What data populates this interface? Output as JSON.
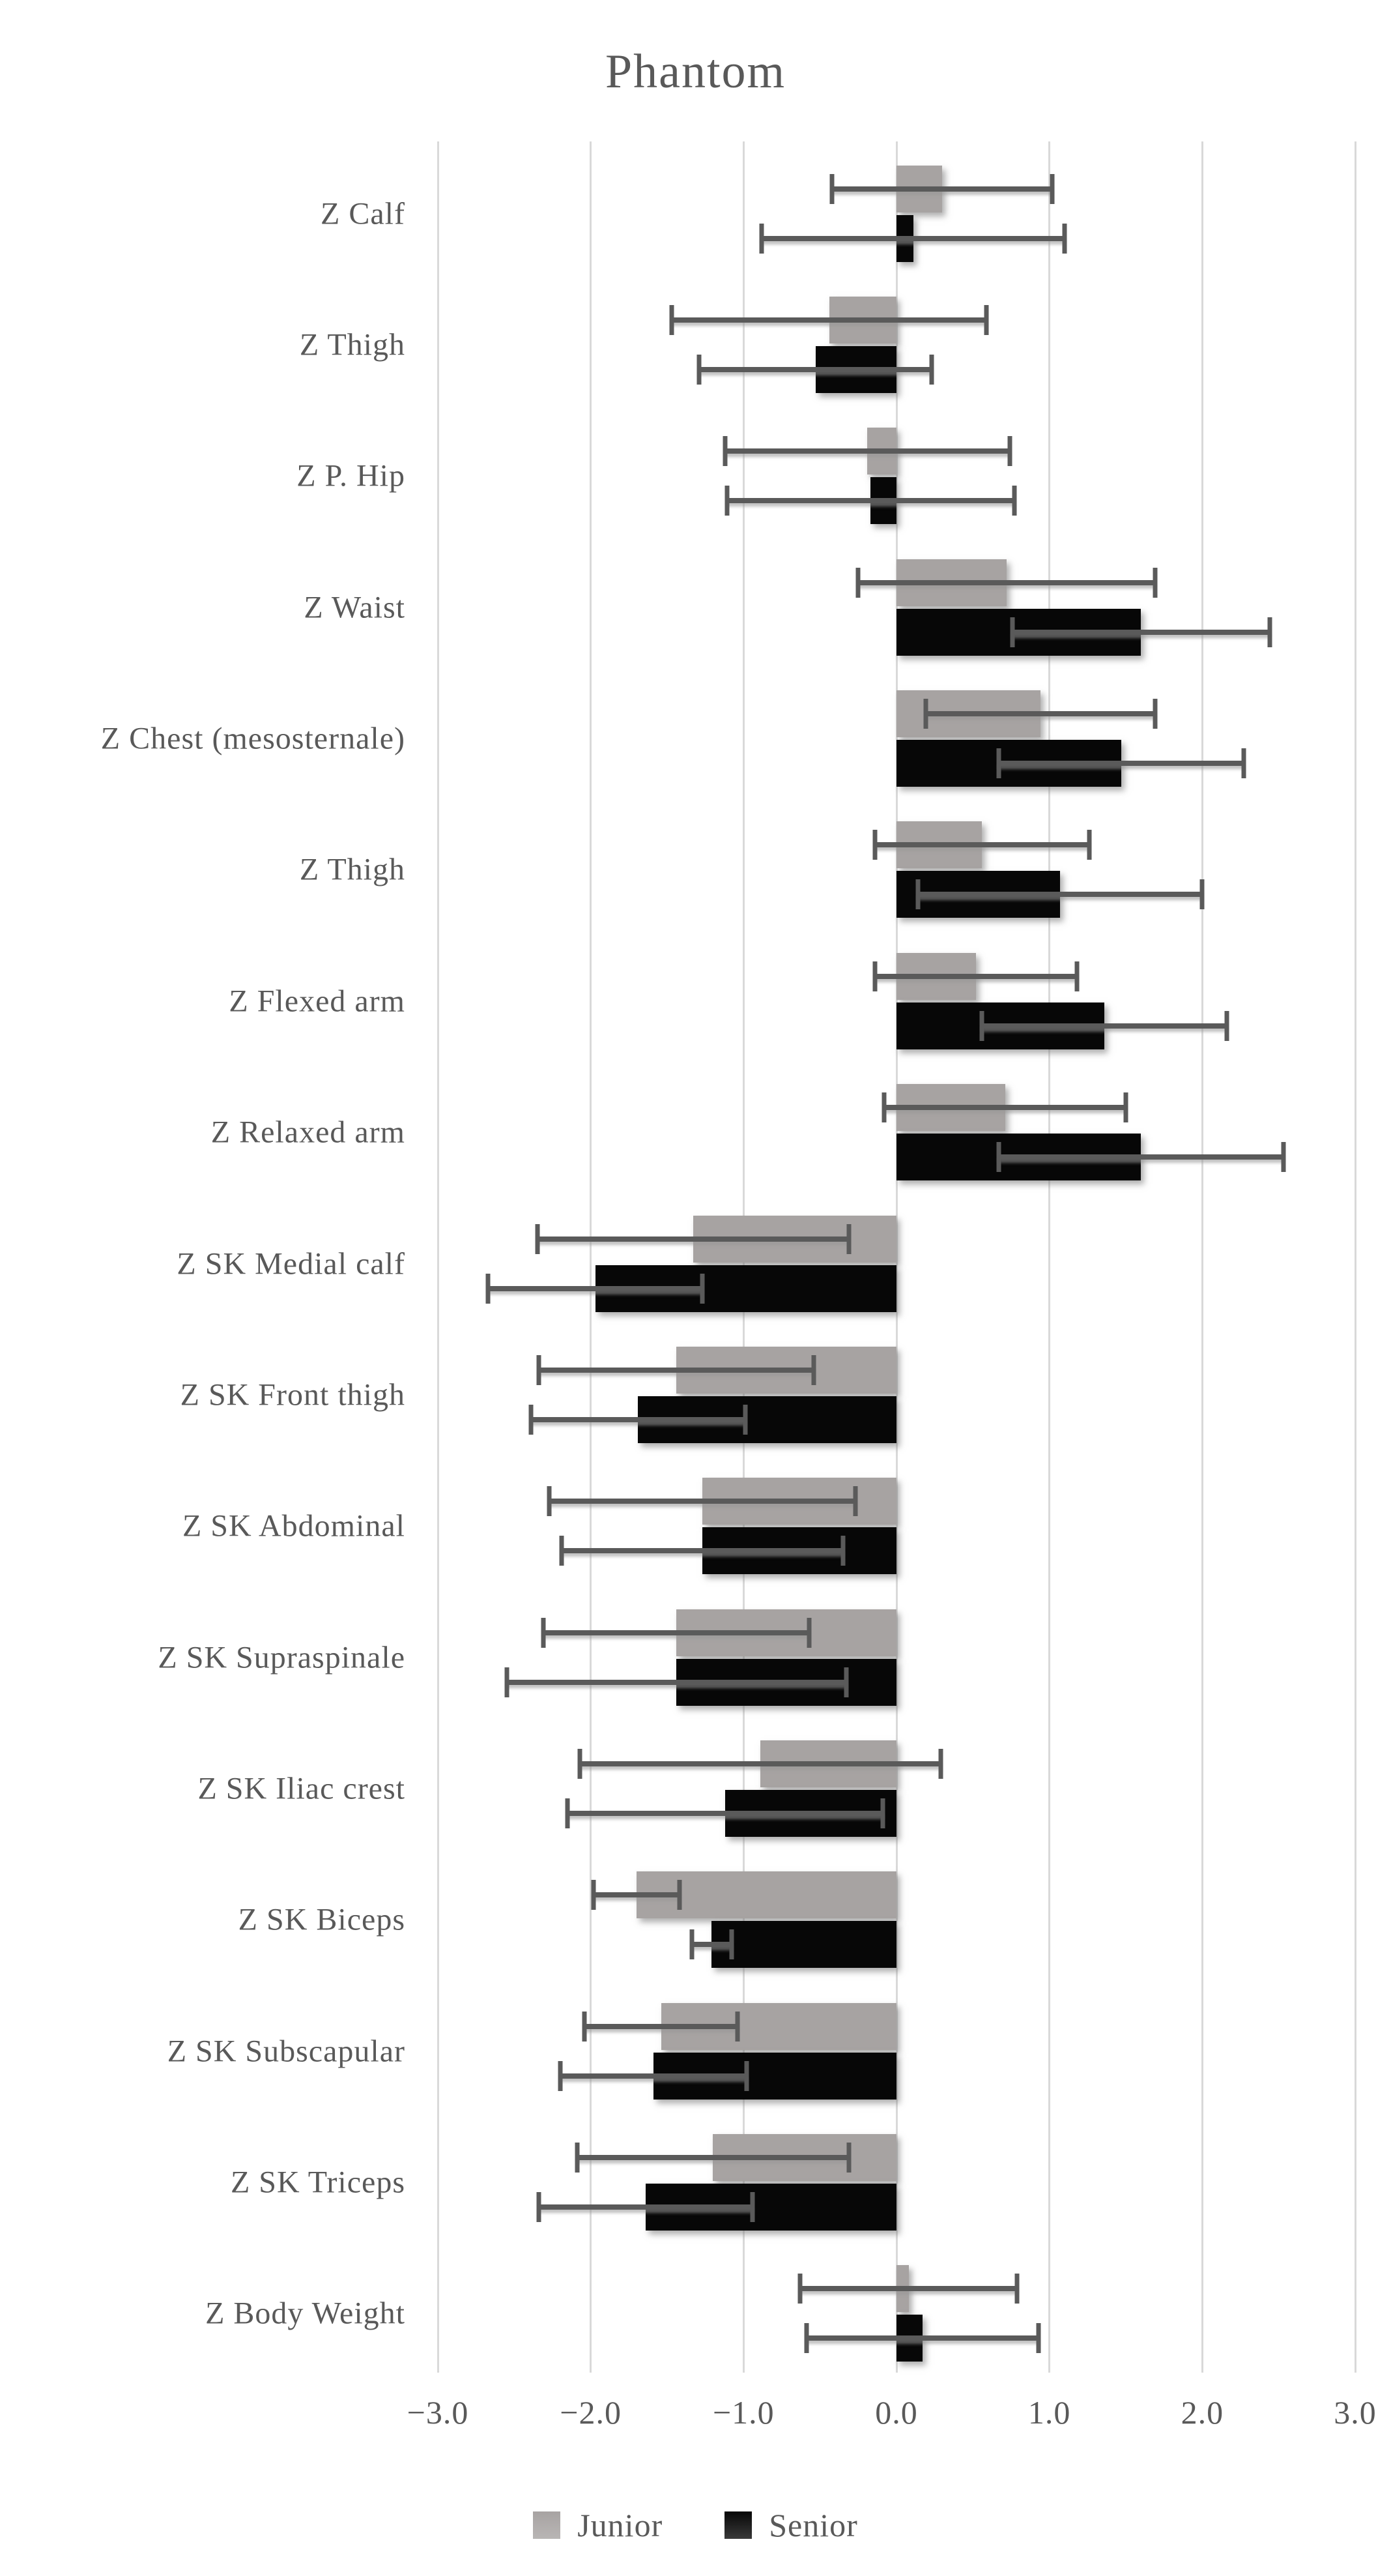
{
  "title": "Phantom",
  "colors": {
    "junior": "#a7a3a2",
    "senior": "#070707",
    "error_bar": "#5a5a5a",
    "gridline": "#d9d9d9",
    "text": "#595959"
  },
  "legend": {
    "items": [
      {
        "label": "Junior",
        "color": "#a7a3a2"
      },
      {
        "label": "Senior",
        "color": "#070707"
      }
    ],
    "position": "bottom"
  },
  "chart_data": {
    "type": "bar",
    "orientation": "horizontal",
    "title": "Phantom",
    "xlabel": "",
    "ylabel": "",
    "xlim": [
      -3.0,
      3.0
    ],
    "grid": true,
    "legend_position": "bottom",
    "x_ticks": [
      "−3.0",
      "−2.0",
      "−1.0",
      "0.0",
      "1.0",
      "2.0",
      "3.0"
    ],
    "x_tick_values": [
      -3.0,
      -2.0,
      -1.0,
      0.0,
      1.0,
      2.0,
      3.0
    ],
    "categories": [
      "Z Calf",
      "Z Thigh",
      "Z P. Hip",
      "Z Waist",
      "Z Chest (mesosternale)",
      "Z Thigh",
      "Z Flexed arm",
      "Z Relaxed arm",
      "Z SK Medial calf",
      "Z SK Front thigh",
      "Z SK Abdominal",
      "Z SK Supraspinale",
      "Z SK Iliac crest",
      "Z SK Biceps",
      "Z SK Subscapular",
      "Z SK Triceps",
      "Z Body Weight"
    ],
    "series": [
      {
        "name": "Junior",
        "color": "#a7a3a2",
        "values": [
          0.3,
          -0.44,
          -0.19,
          0.72,
          0.94,
          0.56,
          0.52,
          0.71,
          -1.33,
          -1.44,
          -1.27,
          -1.44,
          -0.89,
          -1.7,
          -1.54,
          -1.2,
          0.08
        ],
        "errors": [
          0.72,
          1.03,
          0.93,
          0.97,
          0.75,
          0.7,
          0.66,
          0.79,
          1.02,
          0.9,
          1.0,
          0.87,
          1.18,
          0.28,
          0.5,
          0.89,
          0.71
        ]
      },
      {
        "name": "Senior",
        "color": "#070707",
        "values": [
          0.11,
          -0.53,
          -0.17,
          1.6,
          1.47,
          1.07,
          1.36,
          1.6,
          -1.97,
          -1.69,
          -1.27,
          -1.44,
          -1.12,
          -1.21,
          -1.59,
          -1.64,
          0.17
        ],
        "errors": [
          0.99,
          0.76,
          0.94,
          0.84,
          0.8,
          0.93,
          0.8,
          0.93,
          0.7,
          0.7,
          0.92,
          1.11,
          1.03,
          0.13,
          0.61,
          0.7,
          0.76
        ]
      }
    ]
  }
}
